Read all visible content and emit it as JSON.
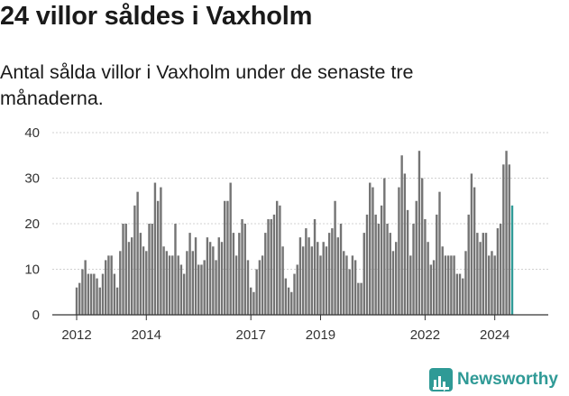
{
  "header": {
    "title": "24 villor såldes i Vaxholm",
    "subtitle": "Antal sålda villor i Vaxholm under de senaste tre månaderna."
  },
  "brand": {
    "name": "Newsworthy",
    "color": "#2f9a96"
  },
  "chart_data": {
    "type": "bar",
    "title": "24 villor såldes i Vaxholm",
    "xlabel": "",
    "ylabel": "",
    "ylim": [
      0,
      40
    ],
    "yticks": [
      0,
      10,
      20,
      30,
      40
    ],
    "start": [
      2012,
      1
    ],
    "bar_color": "#747474",
    "highlight_color": "#2f9a96",
    "xticks": [
      {
        "label": "2012",
        "index": 0
      },
      {
        "label": "2014",
        "index": 24
      },
      {
        "label": "2017",
        "index": 60
      },
      {
        "label": "2019",
        "index": 84
      },
      {
        "label": "2022",
        "index": 120
      },
      {
        "label": "2024",
        "index": 144
      }
    ],
    "annotation": {
      "label": "24",
      "index": 152
    },
    "values": [
      6,
      7,
      10,
      12,
      9,
      9,
      9,
      8,
      6,
      9,
      12,
      13,
      13,
      9,
      6,
      14,
      20,
      20,
      16,
      17,
      24,
      27,
      18,
      15,
      14,
      20,
      20,
      29,
      25,
      28,
      15,
      14,
      13,
      13,
      20,
      13,
      11,
      9,
      14,
      18,
      14,
      17,
      11,
      11,
      12,
      17,
      16,
      15,
      12,
      17,
      16,
      25,
      25,
      29,
      18,
      13,
      18,
      21,
      20,
      12,
      6,
      5,
      10,
      12,
      13,
      18,
      21,
      21,
      22,
      25,
      24,
      15,
      8,
      6,
      5,
      9,
      11,
      17,
      15,
      19,
      17,
      15,
      21,
      16,
      13,
      16,
      15,
      18,
      19,
      25,
      17,
      20,
      14,
      13,
      10,
      13,
      12,
      7,
      7,
      18,
      22,
      29,
      28,
      22,
      20,
      24,
      30,
      20,
      18,
      14,
      16,
      28,
      35,
      31,
      23,
      13,
      20,
      25,
      36,
      30,
      21,
      16,
      11,
      12,
      22,
      27,
      15,
      13,
      13,
      13,
      13,
      9,
      9,
      8,
      14,
      22,
      31,
      28,
      18,
      16,
      18,
      18,
      13,
      14,
      13,
      19,
      20,
      33,
      36,
      33,
      24
    ]
  }
}
